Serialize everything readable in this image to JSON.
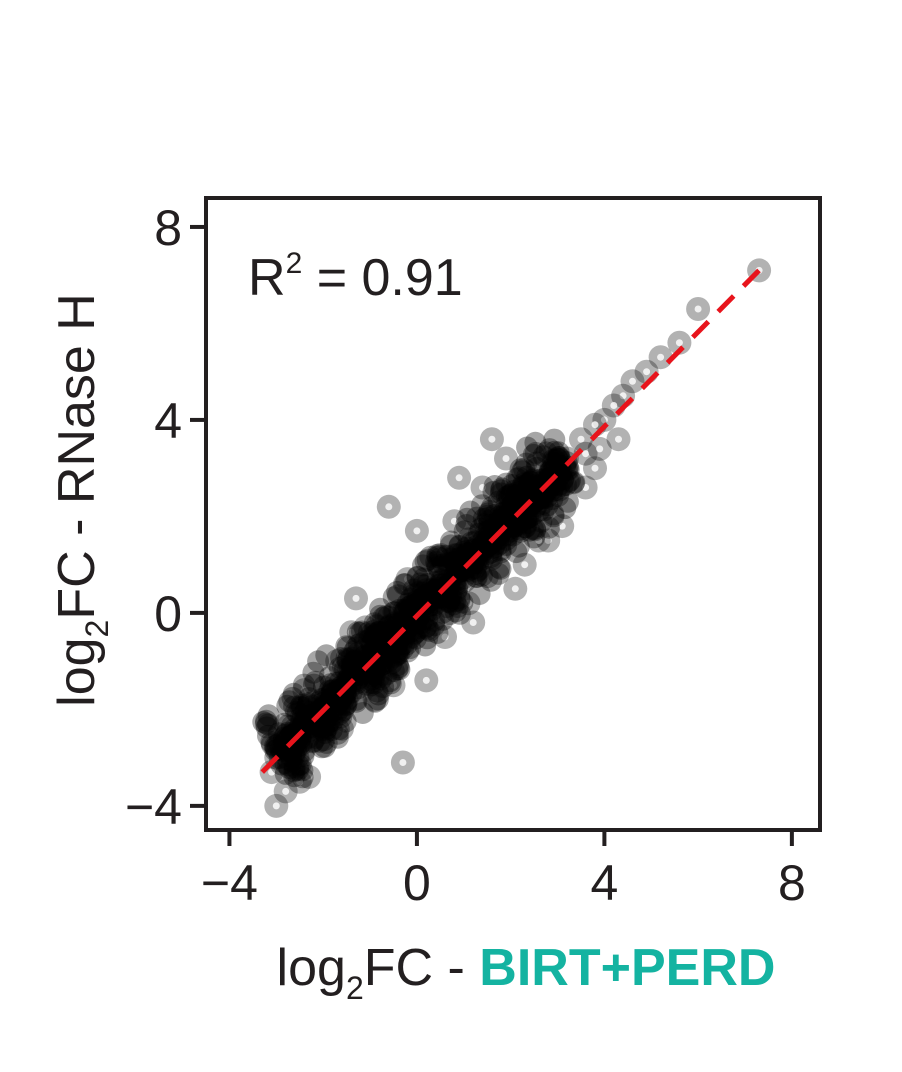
{
  "chart_data": {
    "type": "scatter",
    "title": "",
    "xlabel": {
      "prefix": "log",
      "subscript": "2",
      "middle": "FC - ",
      "highlight": "BIRT+PERD",
      "highlight_color": "#14b3a1"
    },
    "ylabel": {
      "prefix": "log",
      "subscript": "2",
      "suffix": "FC - RNase H"
    },
    "annotation": {
      "base": "R",
      "superscript": "2",
      "rest": " = 0.91"
    },
    "xlim": [
      -4.5,
      8.6
    ],
    "ylim": [
      -4.5,
      8.6
    ],
    "xticks": [
      -4,
      0,
      4,
      8
    ],
    "yticks": [
      -4,
      0,
      4,
      8
    ],
    "xtick_labels": [
      "−4",
      "0",
      "4",
      "8"
    ],
    "ytick_labels": [
      "−4",
      "0",
      "4",
      "8"
    ],
    "grid": false,
    "legend": "none",
    "point_color": "#000000",
    "reference_line": {
      "x": [
        -3.3,
        7.3
      ],
      "y": [
        -3.3,
        7.1
      ],
      "color": "#e8141c",
      "style": "dashed"
    },
    "series": [
      {
        "x": [
          7.3,
          6.0,
          5.6,
          5.2,
          4.9,
          4.6,
          4.4,
          4.2,
          4.0,
          3.8,
          3.5,
          3.6,
          3.8,
          3.2,
          3.0,
          2.8,
          2.6,
          2.4,
          2.2,
          2.0,
          1.8,
          1.6,
          1.5,
          1.2,
          1.0,
          0.8,
          0.6,
          0.4,
          0.2,
          0.0,
          -0.2,
          -0.4,
          -0.6,
          -0.8,
          -1.0,
          -1.2,
          -1.4,
          -1.6,
          -1.8,
          -2.0,
          -2.2,
          -2.4,
          -2.6,
          -2.8,
          -3.0,
          -3.1,
          -2.3,
          -2.5,
          -2.8,
          -3.0,
          1.6,
          0.9,
          3.6,
          2.4,
          1.9,
          0.8,
          -0.6,
          0.0,
          -1.3,
          -1.4,
          -1.7,
          0.2,
          2.1,
          2.8,
          1.2,
          -0.3,
          -2.4,
          -1.6,
          2.3,
          3.1,
          4.3,
          -0.2,
          1.4,
          0.5,
          -1.1,
          1.1,
          0.6,
          -0.5,
          -0.9,
          2.5,
          3.9,
          2.6
        ],
        "y": [
          7.1,
          6.3,
          5.6,
          5.3,
          5.0,
          4.8,
          4.5,
          4.3,
          4.0,
          3.9,
          3.6,
          3.3,
          3.0,
          3.2,
          2.9,
          2.7,
          2.5,
          2.3,
          2.1,
          1.9,
          1.7,
          1.5,
          1.4,
          1.1,
          0.9,
          0.7,
          0.5,
          0.3,
          0.1,
          -0.1,
          -0.3,
          -0.5,
          -0.7,
          -0.9,
          -1.0,
          -1.2,
          -1.4,
          -1.6,
          -1.8,
          -2.0,
          -2.2,
          -2.3,
          -2.6,
          -2.8,
          -3.0,
          -3.3,
          -3.4,
          -3.5,
          -3.7,
          -4.0,
          3.6,
          2.8,
          2.6,
          2.3,
          3.2,
          1.9,
          2.2,
          1.7,
          0.3,
          -0.4,
          -1.0,
          -1.4,
          0.5,
          1.5,
          -0.2,
          -3.1,
          -1.6,
          -2.4,
          1.0,
          1.8,
          3.6,
          0.7,
          2.6,
          1.2,
          -0.3,
          0.2,
          -0.5,
          -1.5,
          -1.8,
          2.6,
          3.4,
          1.5
        ]
      }
    ]
  }
}
